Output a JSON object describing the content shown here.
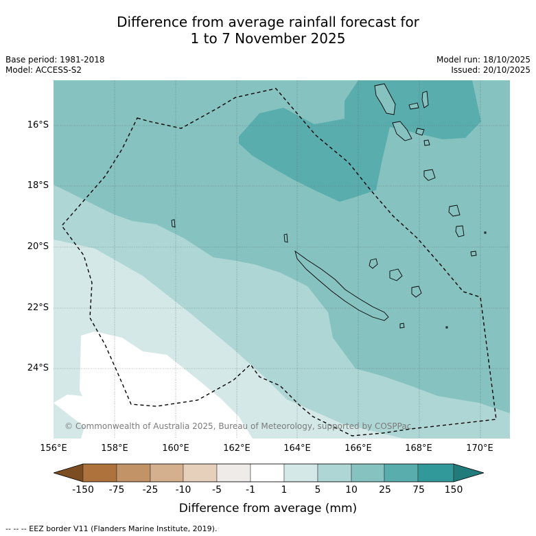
{
  "title": {
    "line1": "Difference from average rainfall forecast for",
    "line2": "1 to 7 November 2025"
  },
  "meta": {
    "base_period": "Base period: 1981-2018",
    "model": "Model: ACCESS-S2",
    "model_run": "Model run: 18/10/2025",
    "issued": "Issued: 20/10/2025"
  },
  "map": {
    "lat_labels": [
      "16°S",
      "18°S",
      "20°S",
      "22°S",
      "24°S"
    ],
    "lon_labels": [
      "156°E",
      "158°E",
      "160°E",
      "162°E",
      "164°E",
      "166°E",
      "168°E",
      "170°E"
    ],
    "copyright": "© Commonwealth of Australia 2025, Bureau of Meteorology, supported by COSPPac"
  },
  "colorbar": {
    "colors": {
      "below": "#7c4d22",
      "c1": "#ae733d",
      "c2": "#c39368",
      "c3": "#d5b08f",
      "c4": "#e6d0bc",
      "c5": "#efebe9",
      "c6": "#ffffff",
      "c7": "#d4e9e7",
      "c8": "#add6d5",
      "c9": "#85c2c0",
      "c10": "#5aadad",
      "c11": "#32999a",
      "above": "#217b7b"
    },
    "labels": [
      "-150",
      "-75",
      "-25",
      "-10",
      "-5",
      "-1",
      "1",
      "5",
      "10",
      "25",
      "75",
      "150"
    ],
    "title": "Difference from average (mm)"
  },
  "footnote": "--  --  -- EEZ border V11 (Flanders Marine Institute, 2019)."
}
